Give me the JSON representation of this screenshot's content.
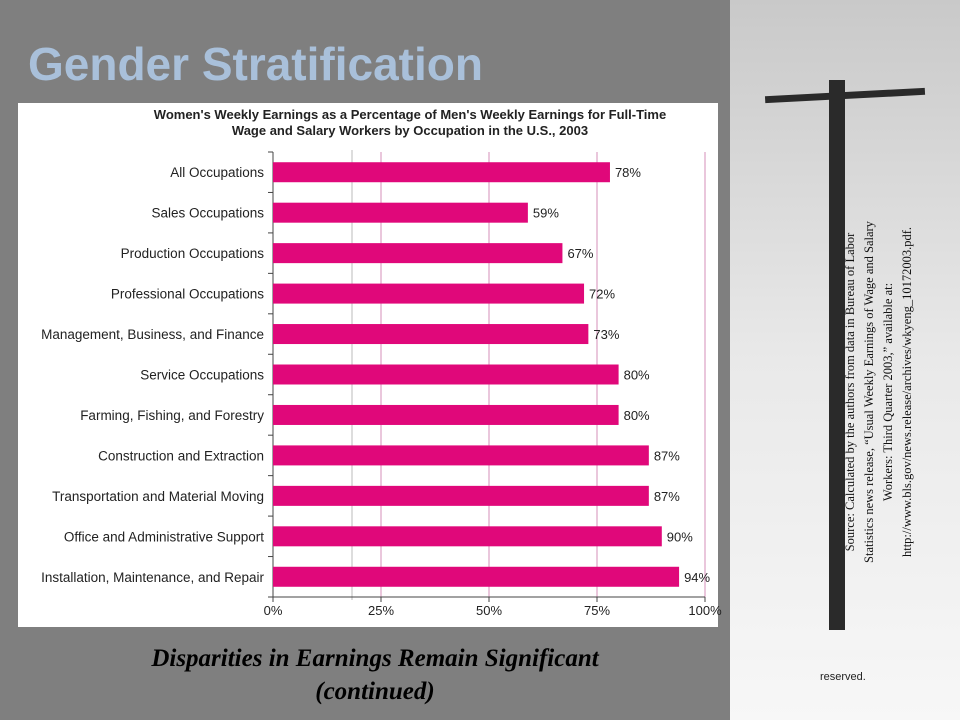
{
  "slide_title": "Gender Stratification",
  "caption_lines": [
    "Disparities in Earnings Remain Significant",
    "(continued)"
  ],
  "source_lines": [
    "Source: Calculated by the authors from data in Bureau of Labor",
    "Statistics news release, “Usual Weekly Earnings of Wage and Salary",
    "Workers: Third Quarter 2003,” available at:",
    "http://www.bls.gov/news.release/archives/wkyeng_10172003.pdf."
  ],
  "footer": "reserved.",
  "chart_data": {
    "type": "bar",
    "orientation": "horizontal",
    "title_lines": [
      "Women's Weekly Earnings as a Percentage of Men's Weekly Earnings for Full-Time",
      "Wage and Salary Workers by Occupation in the U.S., 2003"
    ],
    "categories": [
      "All Occupations",
      "Sales Occupations",
      "Production Occupations",
      "Professional Occupations",
      "Management, Business, and Finance",
      "Service Occupations",
      "Farming, Fishing, and Forestry",
      "Construction and Extraction",
      "Transportation and Material Moving",
      "Office and Administrative Support",
      "Installation, Maintenance, and Repair"
    ],
    "values": [
      78,
      59,
      67,
      72,
      73,
      80,
      80,
      87,
      87,
      90,
      94
    ],
    "value_labels": [
      "78%",
      "59%",
      "67%",
      "72%",
      "73%",
      "80%",
      "80%",
      "87%",
      "87%",
      "90%",
      "94%"
    ],
    "color": "#e0087a",
    "xlim": [
      0,
      100
    ],
    "xticks": [
      {
        "value": 0,
        "label": "0%"
      },
      {
        "value": 25,
        "label": "25%"
      },
      {
        "value": 50,
        "label": "50%"
      },
      {
        "value": 75,
        "label": "75%"
      },
      {
        "value": 100,
        "label": "100%"
      }
    ],
    "grid": true,
    "grid_color": "#d58fb8"
  }
}
